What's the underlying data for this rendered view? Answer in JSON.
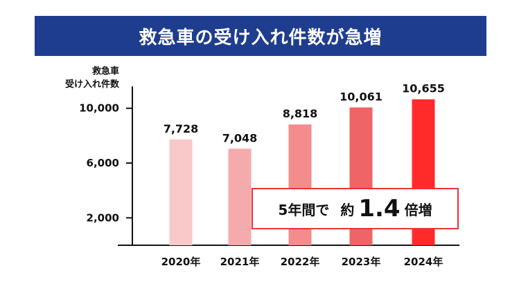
{
  "title": "救急車の受け入れ件数が急増",
  "colors": {
    "banner": "#1f3d8f",
    "bars": [
      "#f9c8c9",
      "#f5aaac",
      "#f48c8e",
      "#ef6467",
      "#ff2b2b"
    ],
    "callout_border": "#e8333a"
  },
  "callout": {
    "prefix": "5年間で",
    "mid": "約",
    "value": "1.4",
    "suffix": "倍増"
  },
  "chart_data": {
    "type": "bar",
    "title": "救急車の受け入れ件数が急増",
    "ylabel_lines": [
      "救急車",
      "受け入れ件数"
    ],
    "xlabel": "",
    "categories": [
      "2020年",
      "2021年",
      "2022年",
      "2023年",
      "2024年"
    ],
    "values": [
      7728,
      7048,
      8818,
      10061,
      10655
    ],
    "value_labels": [
      "7,728",
      "7,048",
      "8,818",
      "10,061",
      "10,655"
    ],
    "y_ticks": [
      2000,
      6000,
      10000
    ],
    "y_tick_labels": [
      "2,000",
      "6,000",
      "10,000"
    ],
    "ylim": [
      0,
      11600
    ],
    "grid": false,
    "legend": "none"
  }
}
